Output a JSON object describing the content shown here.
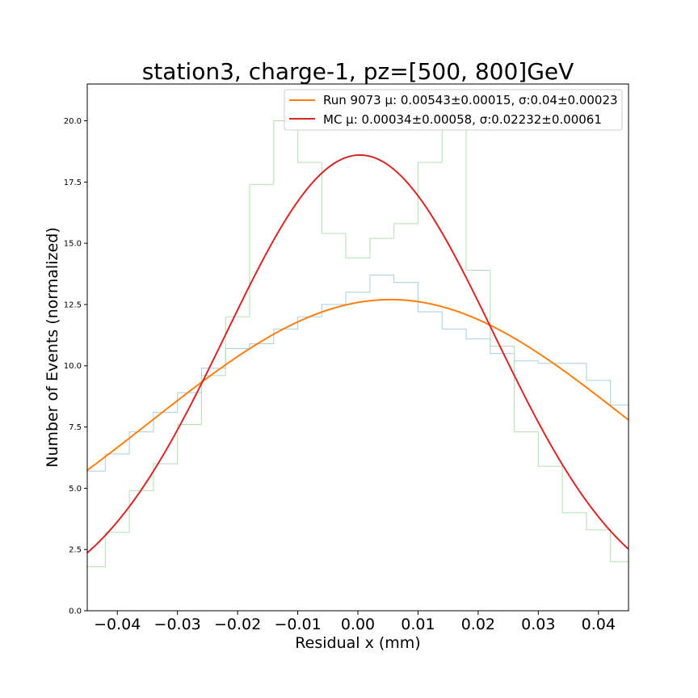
{
  "chart_data": {
    "type": "line",
    "title": "station3, charge-1, pz=[500, 800]GeV",
    "xlabel": "Residual x (mm)",
    "ylabel": "Number of Events (normalized)",
    "xlim": [
      -0.045,
      0.045
    ],
    "ylim": [
      0,
      21.5
    ],
    "grid": false,
    "legend_position": "top-right",
    "xticks": [
      -0.04,
      -0.03,
      -0.02,
      -0.01,
      0.0,
      0.01,
      0.02,
      0.03,
      0.04
    ],
    "xtick_labels": [
      "−0.04",
      "−0.03",
      "−0.02",
      "−0.01",
      "0.00",
      "0.01",
      "0.02",
      "0.03",
      "0.04"
    ],
    "yticks": [
      0.0,
      2.5,
      5.0,
      7.5,
      10.0,
      12.5,
      15.0,
      17.5,
      20.0
    ],
    "ytick_labels": [
      "0.0",
      "2.5",
      "5.0",
      "7.5",
      "10.0",
      "12.5",
      "15.0",
      "17.5",
      "20.0"
    ],
    "bin_edges": [
      -0.045,
      -0.042,
      -0.038,
      -0.034,
      -0.03,
      -0.026,
      -0.022,
      -0.018,
      -0.014,
      -0.01,
      -0.006,
      -0.002,
      0.002,
      0.006,
      0.01,
      0.014,
      0.018,
      0.022,
      0.026,
      0.03,
      0.034,
      0.038,
      0.042,
      0.045
    ],
    "histograms": [
      {
        "name": "Run 9073 data",
        "color": "#a6cee3",
        "values": [
          5.7,
          6.4,
          7.3,
          8.1,
          8.9,
          9.9,
          10.7,
          10.9,
          11.5,
          12.0,
          12.5,
          13.0,
          13.7,
          13.4,
          12.2,
          11.5,
          11.1,
          10.5,
          10.2,
          10.1,
          10.1,
          9.4,
          8.4
        ]
      },
      {
        "name": "MC data",
        "color": "#b2dfb0",
        "values": [
          1.8,
          3.2,
          4.9,
          6.0,
          7.6,
          9.6,
          12.0,
          17.4,
          20.0,
          18.3,
          15.4,
          14.4,
          15.2,
          15.8,
          18.3,
          19.8,
          13.9,
          10.8,
          7.3,
          5.9,
          4.0,
          3.3,
          2.0
        ]
      }
    ],
    "series": [
      {
        "name": "Run 9073",
        "label": "Run 9073 μ: 0.00543±0.00015, σ:0.04±0.00023",
        "color": "#ff7f0e",
        "fit": "gaussian",
        "amplitude": 12.7,
        "mu": 0.00543,
        "sigma": 0.04
      },
      {
        "name": "MC",
        "label": "MC μ: 0.00034±0.00058, σ:0.02232±0.00061",
        "color": "#d62728",
        "fit": "gaussian",
        "amplitude": 18.6,
        "mu": 0.00034,
        "sigma": 0.02232
      }
    ]
  }
}
